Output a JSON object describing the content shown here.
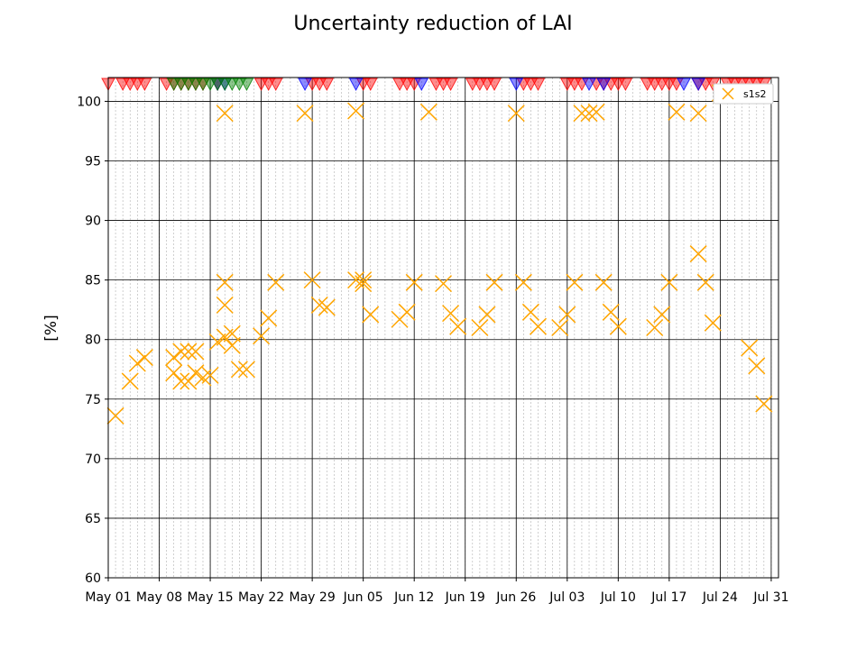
{
  "chart_data": {
    "type": "scatter",
    "title": "Uncertainty reduction of LAI",
    "xlabel": "",
    "ylabel": "[%]",
    "x_range": [
      "2018-05-01",
      "2018-08-01"
    ],
    "ylim": [
      60,
      102
    ],
    "y_ticks": [
      60,
      65,
      70,
      75,
      80,
      85,
      90,
      95,
      100
    ],
    "x_ticks": [
      "May 01",
      "May 08",
      "May 15",
      "May 22",
      "May 29",
      "Jun 05",
      "Jun 12",
      "Jun 19",
      "Jun 26",
      "Jul 03",
      "Jul 10",
      "Jul 17",
      "Jul 24",
      "Jul 31"
    ],
    "x_tick_dates": [
      "2018-05-01",
      "2018-05-08",
      "2018-05-15",
      "2018-05-22",
      "2018-05-29",
      "2018-06-05",
      "2018-06-12",
      "2018-06-19",
      "2018-06-26",
      "2018-07-03",
      "2018-07-10",
      "2018-07-17",
      "2018-07-24",
      "2018-07-31"
    ],
    "grid": "major and daily minor gridlines",
    "legend_position": "top-right",
    "series": [
      {
        "name": "s1s2",
        "marker": "x",
        "color": "#FFA500",
        "points": [
          [
            "2018-05-02",
            73.6
          ],
          [
            "2018-05-04",
            76.5
          ],
          [
            "2018-05-05",
            78.0
          ],
          [
            "2018-05-06",
            78.5
          ],
          [
            "2018-05-10",
            78.5
          ],
          [
            "2018-05-10",
            77.2
          ],
          [
            "2018-05-11",
            79.0
          ],
          [
            "2018-05-11",
            76.5
          ],
          [
            "2018-05-12",
            79.0
          ],
          [
            "2018-05-12",
            76.5
          ],
          [
            "2018-05-13",
            79.0
          ],
          [
            "2018-05-13",
            77.2
          ],
          [
            "2018-05-14",
            76.8
          ],
          [
            "2018-05-15",
            77.0
          ],
          [
            "2018-05-16",
            79.8
          ],
          [
            "2018-05-17",
            80.2
          ],
          [
            "2018-05-17",
            84.8
          ],
          [
            "2018-05-17",
            82.9
          ],
          [
            "2018-05-17",
            99.0
          ],
          [
            "2018-05-18",
            79.5
          ],
          [
            "2018-05-18",
            80.5
          ],
          [
            "2018-05-19",
            77.5
          ],
          [
            "2018-05-20",
            77.5
          ],
          [
            "2018-05-22",
            80.3
          ],
          [
            "2018-05-23",
            81.8
          ],
          [
            "2018-05-24",
            84.8
          ],
          [
            "2018-05-28",
            99.0
          ],
          [
            "2018-05-29",
            85.0
          ],
          [
            "2018-05-30",
            82.9
          ],
          [
            "2018-05-31",
            82.7
          ],
          [
            "2018-06-04",
            99.2
          ],
          [
            "2018-06-04",
            85.0
          ],
          [
            "2018-06-05",
            85.0
          ],
          [
            "2018-06-05",
            84.7
          ],
          [
            "2018-06-06",
            82.1
          ],
          [
            "2018-06-10",
            81.7
          ],
          [
            "2018-06-11",
            82.3
          ],
          [
            "2018-06-12",
            84.8
          ],
          [
            "2018-06-14",
            99.1
          ],
          [
            "2018-06-16",
            84.7
          ],
          [
            "2018-06-17",
            82.2
          ],
          [
            "2018-06-18",
            81.1
          ],
          [
            "2018-06-21",
            81.0
          ],
          [
            "2018-06-22",
            82.1
          ],
          [
            "2018-06-23",
            84.8
          ],
          [
            "2018-06-26",
            99.0
          ],
          [
            "2018-06-27",
            84.8
          ],
          [
            "2018-06-28",
            82.3
          ],
          [
            "2018-06-29",
            81.1
          ],
          [
            "2018-07-02",
            81.0
          ],
          [
            "2018-07-03",
            82.1
          ],
          [
            "2018-07-04",
            84.8
          ],
          [
            "2018-07-05",
            99.0
          ],
          [
            "2018-07-06",
            99.0
          ],
          [
            "2018-07-07",
            99.1
          ],
          [
            "2018-07-08",
            84.8
          ],
          [
            "2018-07-09",
            82.3
          ],
          [
            "2018-07-10",
            81.1
          ],
          [
            "2018-07-15",
            81.0
          ],
          [
            "2018-07-16",
            82.1
          ],
          [
            "2018-07-17",
            84.8
          ],
          [
            "2018-07-18",
            99.1
          ],
          [
            "2018-07-21",
            99.0
          ],
          [
            "2018-07-21",
            87.2
          ],
          [
            "2018-07-22",
            84.8
          ],
          [
            "2018-07-23",
            81.4
          ],
          [
            "2018-07-24",
            100.7
          ],
          [
            "2018-07-28",
            79.3
          ],
          [
            "2018-07-29",
            77.8
          ],
          [
            "2018-07-30",
            74.6
          ]
        ]
      }
    ],
    "event_markers": {
      "shape": "downward-triangle",
      "position": "top edge",
      "groups": [
        {
          "color": "#FF0000",
          "dates": [
            "2018-05-01",
            "2018-05-03",
            "2018-05-04",
            "2018-05-05",
            "2018-05-06",
            "2018-05-09",
            "2018-05-10",
            "2018-05-11",
            "2018-05-12",
            "2018-05-13",
            "2018-05-14",
            "2018-05-16",
            "2018-05-22",
            "2018-05-23",
            "2018-05-24",
            "2018-05-29",
            "2018-05-30",
            "2018-05-31",
            "2018-06-05",
            "2018-06-06",
            "2018-06-10",
            "2018-06-11",
            "2018-06-12",
            "2018-06-15",
            "2018-06-16",
            "2018-06-17",
            "2018-06-20",
            "2018-06-21",
            "2018-06-22",
            "2018-06-23",
            "2018-06-27",
            "2018-06-28",
            "2018-06-29",
            "2018-07-03",
            "2018-07-04",
            "2018-07-05",
            "2018-07-07",
            "2018-07-08",
            "2018-07-09",
            "2018-07-10",
            "2018-07-11",
            "2018-07-14",
            "2018-07-15",
            "2018-07-16",
            "2018-07-17",
            "2018-07-18",
            "2018-07-21",
            "2018-07-22",
            "2018-07-23",
            "2018-07-25",
            "2018-07-26",
            "2018-07-27",
            "2018-07-28",
            "2018-07-29",
            "2018-07-30"
          ]
        },
        {
          "color": "#0000FF",
          "dates": [
            "2018-05-16",
            "2018-05-17",
            "2018-05-28",
            "2018-06-04",
            "2018-06-13",
            "2018-06-26",
            "2018-07-06",
            "2018-07-08",
            "2018-07-19",
            "2018-07-21"
          ]
        },
        {
          "color": "#008000",
          "dates": [
            "2018-05-10",
            "2018-05-11",
            "2018-05-12",
            "2018-05-13",
            "2018-05-14",
            "2018-05-15",
            "2018-05-16",
            "2018-05-17",
            "2018-05-18",
            "2018-05-19",
            "2018-05-20"
          ]
        }
      ]
    }
  }
}
